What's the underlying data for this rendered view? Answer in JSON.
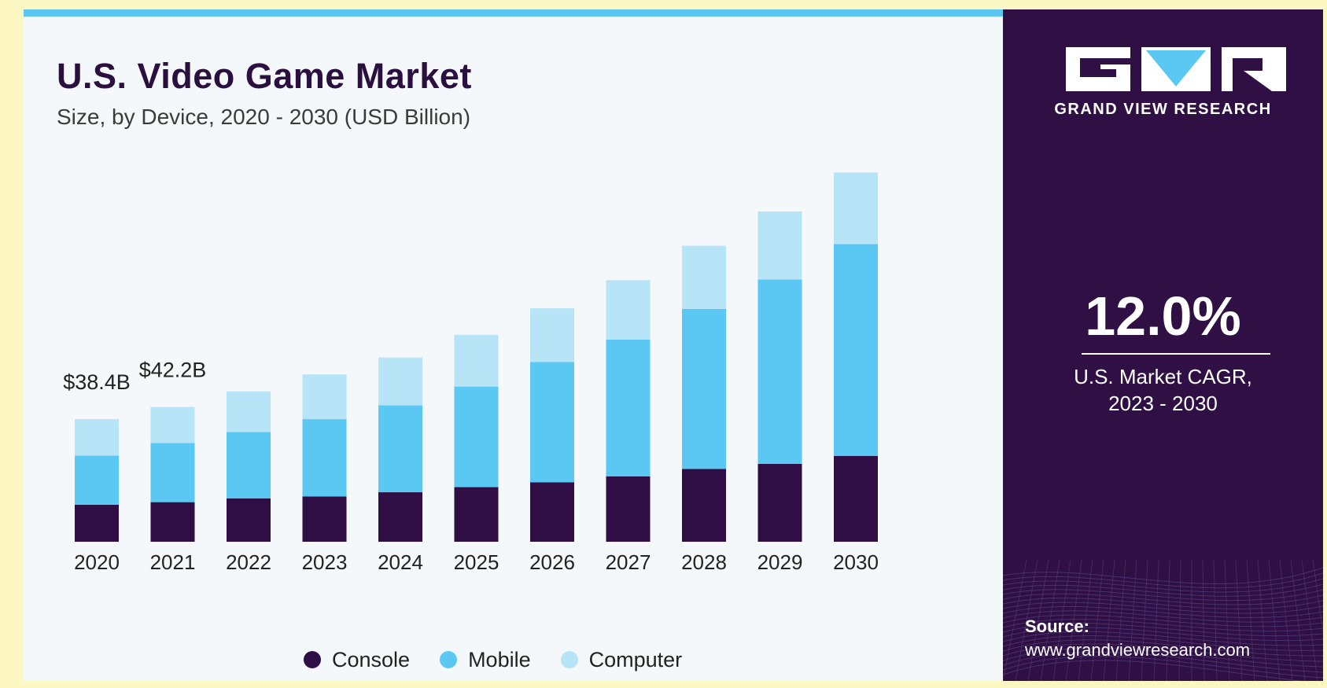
{
  "header": {
    "title": "U.S. Video Game Market",
    "subtitle": "Size, by Device, 2020 - 2030 (USD Billion)"
  },
  "brand": {
    "name": "GRAND VIEW RESEARCH"
  },
  "highlight": {
    "value": "12.0%",
    "label_line1": "U.S. Market CAGR,",
    "label_line2": "2023 - 2030"
  },
  "source": {
    "label": "Source:",
    "url": "www.grandviewresearch.com"
  },
  "colors": {
    "console": "#2e0e44",
    "mobile": "#5ac8f2",
    "computer": "#b7e4f6",
    "title": "#2a0f3f",
    "accent_panel": "#2f0f44"
  },
  "chart_data": {
    "type": "bar",
    "stacked": true,
    "title": "U.S. Video Game Market",
    "subtitle": "Size, by Device, 2020 - 2030 (USD Billion)",
    "categories": [
      "2020",
      "2021",
      "2022",
      "2023",
      "2024",
      "2025",
      "2026",
      "2027",
      "2028",
      "2029",
      "2030"
    ],
    "series": [
      {
        "name": "Console",
        "color": "#2e0e44",
        "values": [
          11.6,
          12.4,
          13.6,
          14.2,
          15.5,
          17.1,
          18.6,
          20.5,
          22.8,
          24.4,
          26.9
        ]
      },
      {
        "name": "Mobile",
        "color": "#5ac8f2",
        "values": [
          15.4,
          18.5,
          20.8,
          24.2,
          27.2,
          31.5,
          37.7,
          42.8,
          50.1,
          57.7,
          66.3
        ]
      },
      {
        "name": "Computer",
        "color": "#b7e4f6",
        "values": [
          11.4,
          11.3,
          12.7,
          14.0,
          15.0,
          16.2,
          16.8,
          18.6,
          19.8,
          21.3,
          22.4
        ]
      }
    ],
    "data_labels": [
      {
        "category": "2020",
        "text": "$38.4B"
      },
      {
        "category": "2021",
        "text": "$42.2B"
      }
    ],
    "ylim": [
      0,
      130
    ],
    "legend": "bottom",
    "grid": false,
    "xlabel": "",
    "ylabel": ""
  }
}
